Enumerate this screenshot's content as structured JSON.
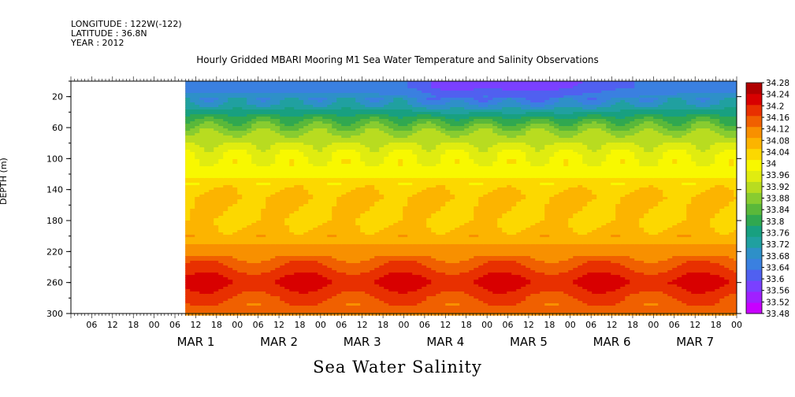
{
  "header": {
    "longitude": "LONGITUDE : 122W(-122)",
    "latitude": "LATITUDE : 36.8N",
    "year": "YEAR : 2012"
  },
  "chart_data": {
    "type": "heatmap",
    "title": "Hourly Gridded MBARI Mooring M1 Sea Water Temperature and Salinity Observations",
    "variable": "Sea Water Salinity",
    "ylabel": "DEPTH (m)",
    "ylim": [
      300,
      0
    ],
    "y_ticks": [
      20,
      60,
      100,
      140,
      180,
      220,
      260,
      300
    ],
    "hour_ticks": [
      "06",
      "12",
      "18",
      "00",
      "06",
      "12",
      "18",
      "00",
      "06",
      "12",
      "18",
      "00",
      "06",
      "12",
      "18",
      "00",
      "06",
      "12",
      "18",
      "00",
      "06",
      "12",
      "18",
      "00",
      "06",
      "12",
      "18",
      "00",
      "06",
      "12",
      "18",
      "00"
    ],
    "date_labels": [
      "MAR  1",
      "MAR  2",
      "MAR  3",
      "MAR  4",
      "MAR  5",
      "MAR  6",
      "MAR  7"
    ],
    "x_range": [
      "2012-02-29 00:00",
      "2012-03-07 24:00"
    ],
    "data_start": "2012-02-29 09:00",
    "colorbar": {
      "levels": [
        33.48,
        33.52,
        33.56,
        33.6,
        33.64,
        33.68,
        33.72,
        33.76,
        33.8,
        33.84,
        33.88,
        33.92,
        33.96,
        34,
        34.04,
        34.08,
        34.12,
        34.16,
        34.2,
        34.24,
        34.28
      ],
      "colors": [
        "#c800ff",
        "#a020ff",
        "#7a40ff",
        "#5060f0",
        "#3a80e0",
        "#2e90c8",
        "#20a0a0",
        "#18a080",
        "#30a850",
        "#5ab83a",
        "#88cc30",
        "#b8dc20",
        "#e0ec10",
        "#f8f800",
        "#fcd800",
        "#fcb400",
        "#f89000",
        "#f06000",
        "#e83000",
        "#d80000",
        "#b00000"
      ],
      "labels": [
        "34.28",
        "34.24",
        "34.2",
        "34.16",
        "34.12",
        "34.08",
        "34.04",
        "34",
        "33.96",
        "33.92",
        "33.88",
        "33.84",
        "33.8",
        "33.76",
        "33.72",
        "33.68",
        "33.64",
        "33.6",
        "33.56",
        "33.52",
        "33.48"
      ]
    },
    "depth_profile": [
      {
        "depth": 8,
        "value": 33.66
      },
      {
        "depth": 30,
        "value": 33.72
      },
      {
        "depth": 50,
        "value": 33.84
      },
      {
        "depth": 70,
        "value": 33.93
      },
      {
        "depth": 95,
        "value": 34.0
      },
      {
        "depth": 120,
        "value": 34.03
      },
      {
        "depth": 150,
        "value": 34.09
      },
      {
        "depth": 180,
        "value": 34.07
      },
      {
        "depth": 210,
        "value": 34.12
      },
      {
        "depth": 240,
        "value": 34.2
      },
      {
        "depth": 260,
        "value": 34.25
      },
      {
        "depth": 280,
        "value": 34.2
      },
      {
        "depth": 300,
        "value": 34.16
      }
    ]
  }
}
